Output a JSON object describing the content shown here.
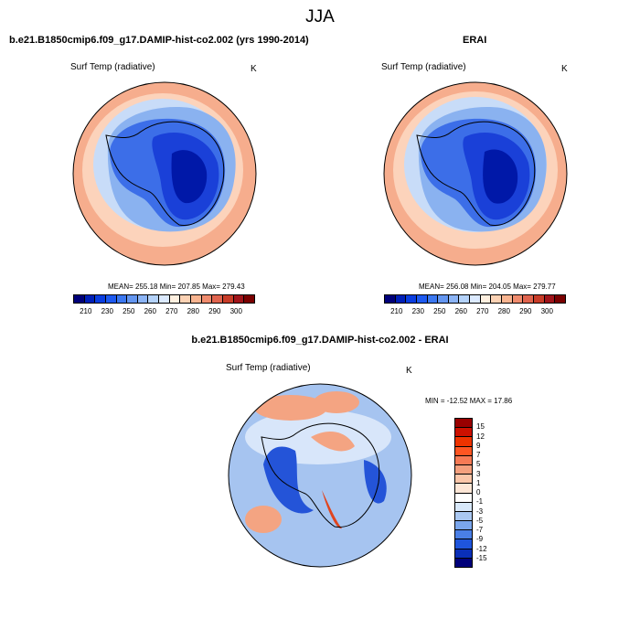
{
  "title": "JJA",
  "panels": [
    {
      "title": "b.e21.B1850cmip6.f09_g17.DAMIP-hist-co2.002 (yrs 1990-2014)",
      "variable": "Surf Temp (radiative)",
      "units": "K",
      "stats": "MEAN= 255.18  Min= 207.85  Max= 279.43"
    },
    {
      "title": "ERAI",
      "variable": "Surf Temp (radiative)",
      "units": "K",
      "stats": "MEAN= 256.08  Min= 204.05  Max= 279.77"
    },
    {
      "title": "b.e21.B1850cmip6.f09_g17.DAMIP-hist-co2.002 - ERAI",
      "variable": "Surf Temp (radiative)",
      "units": "K",
      "stats": "MIN = -12.52 MAX =  17.86"
    }
  ],
  "colorbar_abs": {
    "ticks": [
      "210",
      "230",
      "250",
      "260",
      "270",
      "280",
      "290",
      "300"
    ],
    "colors": [
      "#00007a",
      "#0020b8",
      "#0a3ee0",
      "#1e5af0",
      "#3c78f0",
      "#6496f0",
      "#8cb4f5",
      "#b4d2fa",
      "#dceaff",
      "#fff0e0",
      "#fcd2b4",
      "#f8b490",
      "#f08c6e",
      "#e0644e",
      "#c83c28",
      "#a0141a",
      "#7a0000"
    ]
  },
  "colorbar_diff": {
    "ticks": [
      "15",
      "12",
      "9",
      "7",
      "5",
      "3",
      "1",
      "0",
      "-1",
      "-3",
      "-5",
      "-7",
      "-9",
      "-12",
      "-15"
    ],
    "colors": [
      "#990000",
      "#cc1100",
      "#ee3300",
      "#ff5522",
      "#f77a55",
      "#f5a07e",
      "#fbc6a9",
      "#fde6d6",
      "#ffffff",
      "#d8e8fa",
      "#aac8f2",
      "#7aa6ec",
      "#4a7fe6",
      "#1f55dc",
      "#0a2fb8",
      "#00007a"
    ]
  },
  "map_colors": {
    "ocean_warm": "#f6ad8d",
    "ocean_mid": "#fcd3bb",
    "ice_edge": "#c8dcf8",
    "sea_ice": "#8ab2f0",
    "coast": "#3c6ee8",
    "interior": "#1a40d8",
    "plateau": "#0018a8",
    "diff_blue": "#a6c4f0",
    "diff_light": "#d8e6fa",
    "diff_red": "#f4a482",
    "diff_strong_blue": "#2454d8",
    "diff_strong_red": "#e0441e"
  }
}
